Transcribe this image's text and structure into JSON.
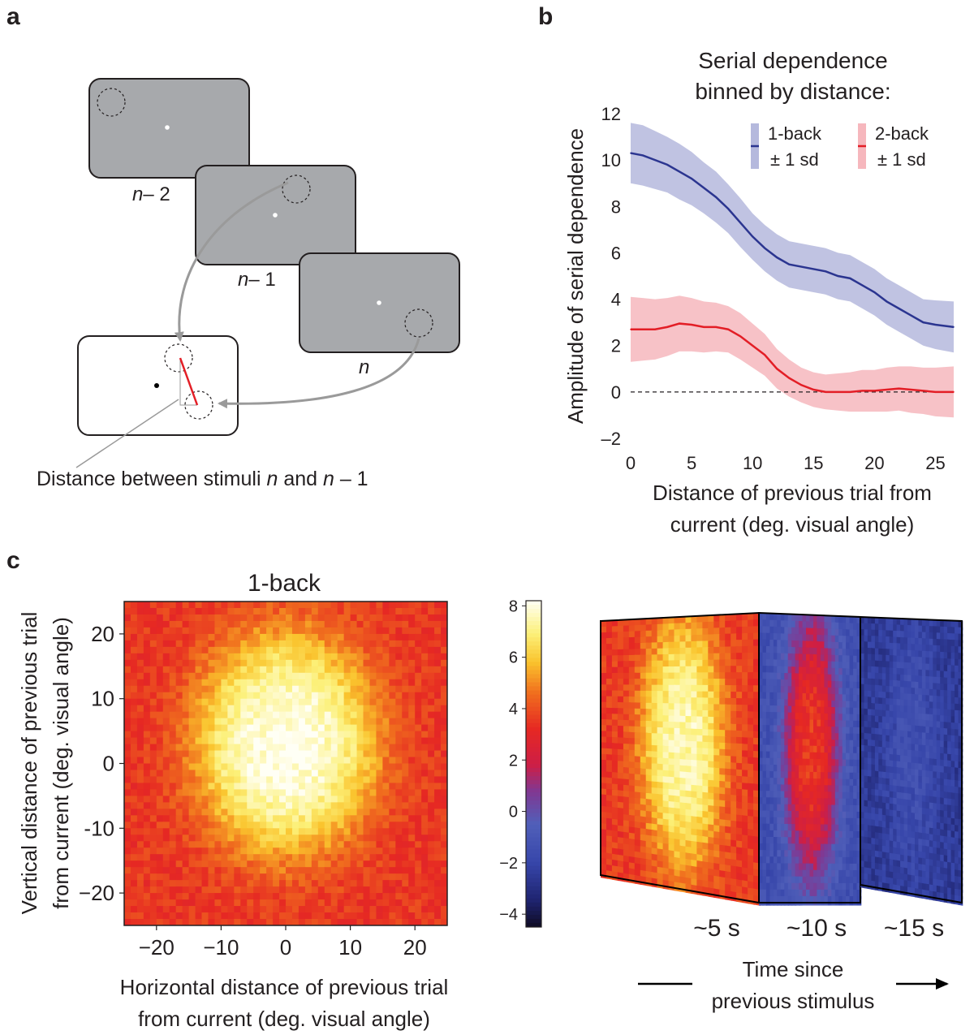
{
  "panels": {
    "a": "a",
    "b": "b",
    "c": "c"
  },
  "panel_a": {
    "screen_labels": [
      "n",
      "– 2",
      "n",
      "– 1",
      "n"
    ],
    "caption_parts": [
      "Distance between stimuli ",
      "n",
      " and ",
      "n",
      " – 1"
    ]
  },
  "chart_data": [
    {
      "id": "panel_b",
      "type": "line",
      "title": [
        "Serial dependence",
        "binned by distance:"
      ],
      "xlabel": [
        "Distance of previous trial from",
        "current (deg. visual angle)"
      ],
      "ylabel": "Amplitude of serial dependence",
      "xlim": [
        0,
        26.5
      ],
      "ylim": [
        -2,
        12
      ],
      "xticks": [
        "0",
        "5",
        "10",
        "15",
        "20",
        "25"
      ],
      "yticks": [
        "–2",
        "0",
        "2",
        "4",
        "6",
        "8",
        "10",
        "12"
      ],
      "reference_line": {
        "y": 0,
        "style": "dashed"
      },
      "legend_placement": "top-right",
      "colors": {
        "one_back": "#2b3590",
        "one_back_band": "#b5b9dd",
        "two_back": "#e31e26",
        "two_back_band": "#f6b7bd"
      },
      "series": [
        {
          "name": "1-back",
          "band_label": "± 1 sd",
          "x": [
            0,
            1,
            2,
            3,
            4,
            5,
            6,
            7,
            8,
            9,
            10,
            11,
            12,
            13,
            14,
            15,
            16,
            17,
            18,
            19,
            20,
            21,
            22,
            23,
            24,
            25,
            26.5
          ],
          "y": [
            10.3,
            10.2,
            10.0,
            9.8,
            9.5,
            9.2,
            8.8,
            8.4,
            7.9,
            7.3,
            6.7,
            6.2,
            5.8,
            5.5,
            5.4,
            5.3,
            5.2,
            5.0,
            4.9,
            4.6,
            4.3,
            3.9,
            3.6,
            3.3,
            3.0,
            2.9,
            2.8
          ],
          "sd": [
            1.3,
            1.3,
            1.25,
            1.2,
            1.2,
            1.15,
            1.1,
            1.1,
            1.05,
            1.05,
            1.0,
            1.0,
            1.0,
            1.0,
            1.0,
            1.0,
            1.0,
            1.0,
            1.0,
            1.0,
            1.0,
            1.0,
            1.0,
            1.0,
            1.0,
            1.05,
            1.1
          ]
        },
        {
          "name": "2-back",
          "band_label": "± 1 sd",
          "x": [
            0,
            1,
            2,
            3,
            4,
            5,
            6,
            7,
            8,
            9,
            10,
            11,
            12,
            13,
            14,
            15,
            16,
            17,
            18,
            19,
            20,
            21,
            22,
            23,
            24,
            25,
            26.5
          ],
          "y": [
            2.7,
            2.7,
            2.7,
            2.8,
            2.95,
            2.9,
            2.8,
            2.8,
            2.7,
            2.4,
            2.0,
            1.6,
            1.0,
            0.6,
            0.3,
            0.1,
            0.0,
            0.0,
            0.0,
            0.05,
            0.05,
            0.1,
            0.15,
            0.1,
            0.05,
            0.0,
            0.0
          ],
          "sd": [
            1.4,
            1.35,
            1.3,
            1.25,
            1.2,
            1.15,
            1.1,
            1.05,
            1.0,
            1.0,
            0.95,
            0.9,
            0.85,
            0.8,
            0.75,
            0.75,
            0.75,
            0.8,
            0.85,
            0.9,
            0.9,
            0.95,
            0.95,
            1.0,
            1.0,
            1.05,
            1.1
          ]
        }
      ]
    },
    {
      "id": "panel_c",
      "type": "heatmap",
      "title": "1-back",
      "xlabel": [
        "Horizontal distance of previous trial",
        "from current (deg. visual angle)"
      ],
      "ylabel": [
        "Vertical distance of previous trial",
        "from current (deg. visual angle)"
      ],
      "xlim": [
        -25,
        25
      ],
      "ylim": [
        -25,
        25
      ],
      "xticks": [
        "−20",
        "−10",
        "0",
        "10",
        "20"
      ],
      "yticks": [
        "20",
        "10",
        "0",
        "-10",
        "−20"
      ],
      "colorbar": {
        "range": [
          -4.5,
          8.2
        ],
        "ticks": [
          "8",
          "6",
          "4",
          "2",
          "0",
          "−2",
          "−4"
        ]
      },
      "peak": {
        "center_x": 0,
        "center_y": 3,
        "value": 8,
        "background": 3.5
      },
      "time_panels": [
        {
          "label": "~5 s",
          "peak": 7.5,
          "background": 3.5
        },
        {
          "label": "~10 s",
          "peak": 3.5,
          "background": -1.5
        },
        {
          "label": "~15 s",
          "peak": -1.5,
          "background": -2.5
        }
      ],
      "time_axis_label": [
        "Time since",
        "previous stimulus"
      ]
    }
  ]
}
